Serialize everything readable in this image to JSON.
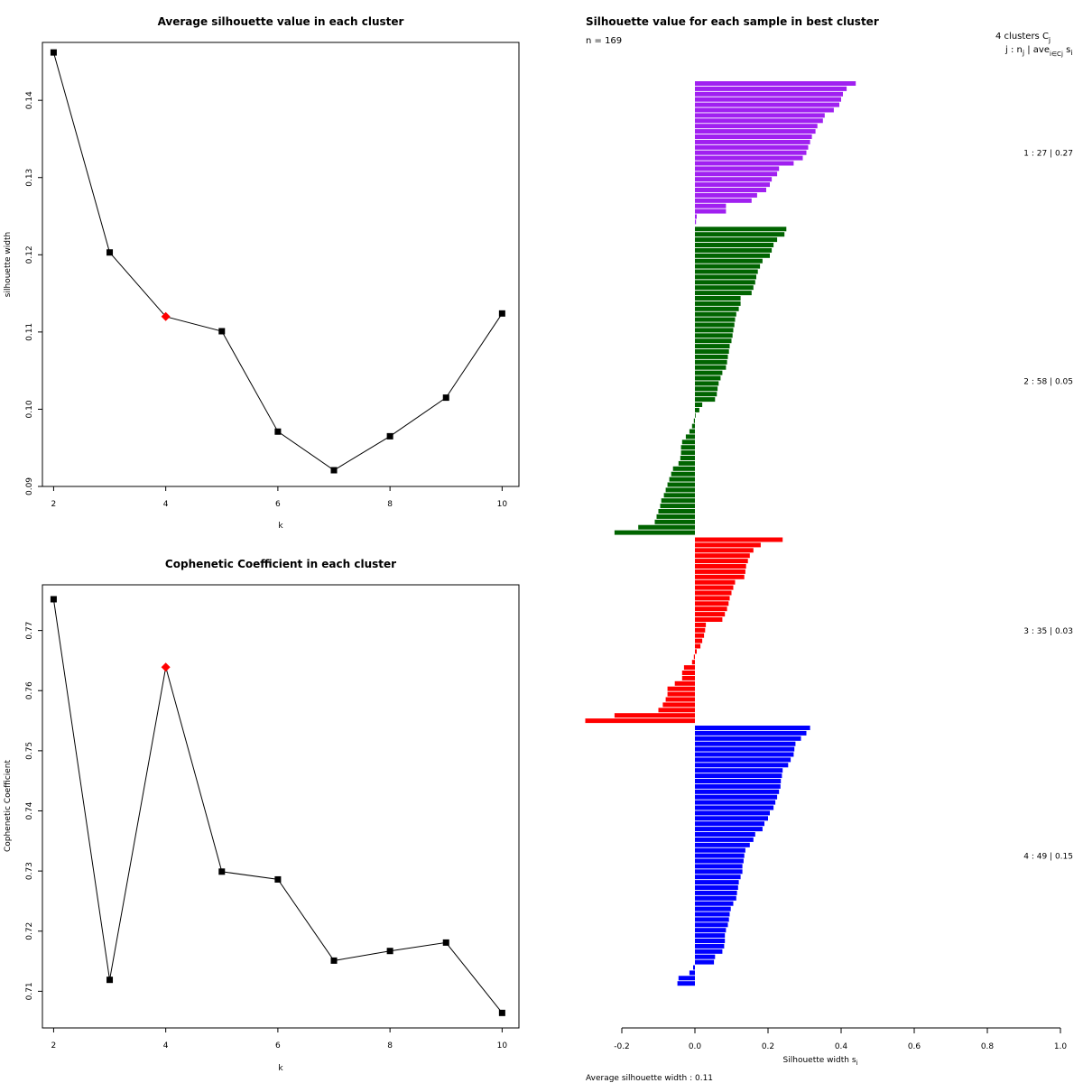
{
  "chart_data": [
    {
      "type": "line",
      "title": "Average silhouette value in each cluster",
      "xlabel": "k",
      "ylabel": "silhouette width",
      "x": [
        2,
        3,
        4,
        5,
        6,
        7,
        8,
        9,
        10
      ],
      "values": [
        0.1462,
        0.1203,
        0.112,
        0.1101,
        0.0971,
        0.0921,
        0.0965,
        0.1015,
        0.1124
      ],
      "highlight_x": 4,
      "highlight_color": "#ff0000",
      "xlim": [
        1.8,
        10.3
      ],
      "ylim": [
        0.09,
        0.1475
      ],
      "xticks": [
        2,
        4,
        6,
        8,
        10
      ],
      "yticks": [
        0.09,
        0.1,
        0.11,
        0.12,
        0.13,
        0.14
      ],
      "xtick_labels": [
        "2",
        "4",
        "6",
        "8",
        "10"
      ],
      "ytick_labels": [
        "0.09",
        "0.10",
        "0.11",
        "0.12",
        "0.13",
        "0.14"
      ]
    },
    {
      "type": "line",
      "title": "Cophenetic Coefficient in each cluster",
      "xlabel": "k",
      "ylabel": "Cophenetic Coefficient",
      "x": [
        2,
        3,
        4,
        5,
        6,
        7,
        8,
        9,
        10
      ],
      "values": [
        0.7752,
        0.7119,
        0.7639,
        0.7299,
        0.7286,
        0.7151,
        0.7167,
        0.7181,
        0.7064
      ],
      "highlight_x": 4,
      "highlight_color": "#ff0000",
      "xlim": [
        1.8,
        10.3
      ],
      "ylim": [
        0.7039,
        0.7776
      ],
      "xticks": [
        2,
        4,
        6,
        8,
        10
      ],
      "yticks": [
        0.71,
        0.72,
        0.73,
        0.74,
        0.75,
        0.76,
        0.77
      ],
      "xtick_labels": [
        "2",
        "4",
        "6",
        "8",
        "10"
      ],
      "ytick_labels": [
        "0.71",
        "0.72",
        "0.73",
        "0.74",
        "0.75",
        "0.76",
        "0.77"
      ]
    },
    {
      "type": "bar",
      "orientation": "horizontal",
      "title": "Silhouette value for each sample in best cluster",
      "n_label": "n = 169",
      "header_line1": "4  clusters  C",
      "header_sub1": "j",
      "header_line2": "j :  n",
      "header_sub2": "j",
      "header_line3": " | ave",
      "header_sub3": "i∈Cj",
      "header_line4": "  s",
      "header_sub4": "i",
      "xlabel": "Silhouette width  s",
      "xlabel_sub": "i",
      "footer": "Average silhouette width :  0.11",
      "xlim": [
        -0.2,
        1.0
      ],
      "xticks": [
        -0.2,
        0.0,
        0.2,
        0.4,
        0.6,
        0.8,
        1.0
      ],
      "xtick_labels": [
        "-0.2",
        "0.0",
        "0.2",
        "0.4",
        "0.6",
        "0.8",
        "1.0"
      ],
      "clusters": [
        {
          "name": "1",
          "label": "1 :  27  |  0.27",
          "color": "#a020f0",
          "values": [
            0.44,
            0.415,
            0.405,
            0.4,
            0.395,
            0.38,
            0.355,
            0.35,
            0.335,
            0.33,
            0.32,
            0.315,
            0.31,
            0.305,
            0.295,
            0.27,
            0.23,
            0.225,
            0.21,
            0.205,
            0.195,
            0.17,
            0.155,
            0.085,
            0.085,
            0.005,
            0.003
          ]
        },
        {
          "name": "2",
          "label": "2 :  58  |  0.05",
          "color": "#006400",
          "values": [
            0.25,
            0.245,
            0.225,
            0.215,
            0.21,
            0.205,
            0.185,
            0.178,
            0.172,
            0.168,
            0.165,
            0.16,
            0.155,
            0.125,
            0.125,
            0.12,
            0.113,
            0.11,
            0.108,
            0.105,
            0.103,
            0.1,
            0.095,
            0.093,
            0.09,
            0.088,
            0.085,
            0.075,
            0.07,
            0.065,
            0.062,
            0.06,
            0.055,
            0.02,
            0.012,
            0.002,
            -0.003,
            -0.008,
            -0.015,
            -0.025,
            -0.035,
            -0.038,
            -0.038,
            -0.04,
            -0.045,
            -0.06,
            -0.065,
            -0.07,
            -0.075,
            -0.08,
            -0.085,
            -0.092,
            -0.095,
            -0.1,
            -0.105,
            -0.11,
            -0.155,
            -0.22
          ]
        },
        {
          "name": "3",
          "label": "3 :  35  |  0.03",
          "color": "#ff0000",
          "values": [
            0.24,
            0.18,
            0.16,
            0.15,
            0.145,
            0.14,
            0.138,
            0.135,
            0.11,
            0.105,
            0.1,
            0.095,
            0.092,
            0.088,
            0.082,
            0.075,
            0.03,
            0.028,
            0.025,
            0.02,
            0.015,
            0.005,
            -0.003,
            -0.008,
            -0.03,
            -0.035,
            -0.035,
            -0.055,
            -0.075,
            -0.075,
            -0.08,
            -0.088,
            -0.1,
            -0.22,
            -0.3
          ]
        },
        {
          "name": "4",
          "label": "4 :  49  |  0.15",
          "color": "#0000ff",
          "values": [
            0.315,
            0.305,
            0.29,
            0.275,
            0.272,
            0.27,
            0.262,
            0.255,
            0.24,
            0.238,
            0.235,
            0.234,
            0.23,
            0.225,
            0.22,
            0.215,
            0.205,
            0.2,
            0.19,
            0.185,
            0.165,
            0.16,
            0.15,
            0.138,
            0.135,
            0.133,
            0.13,
            0.13,
            0.125,
            0.12,
            0.118,
            0.115,
            0.113,
            0.105,
            0.098,
            0.095,
            0.093,
            0.09,
            0.085,
            0.082,
            0.082,
            0.08,
            0.075,
            0.055,
            0.052,
            -0.005,
            -0.015,
            -0.045,
            -0.048
          ]
        }
      ]
    }
  ]
}
